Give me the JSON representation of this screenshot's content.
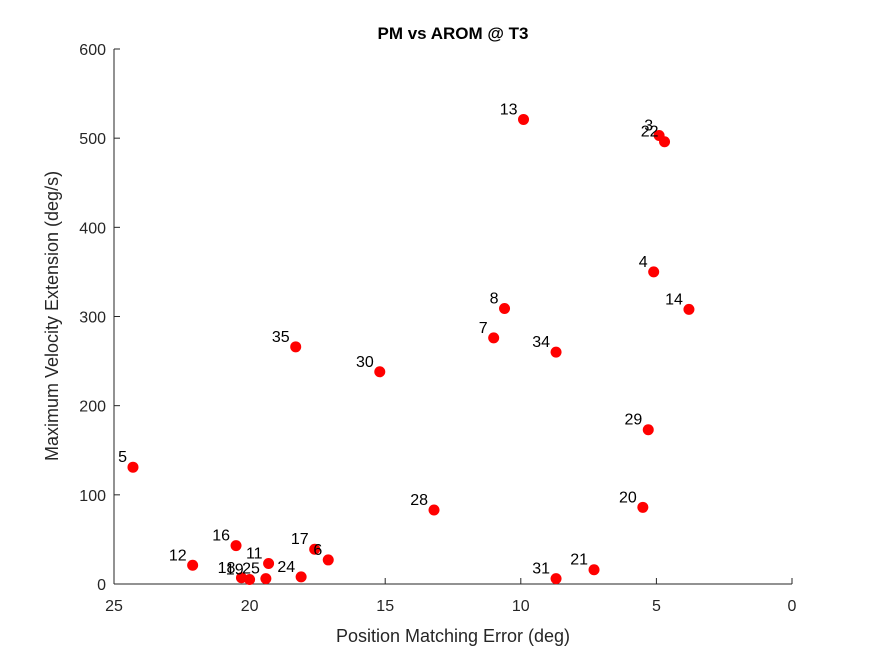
{
  "chart_data": {
    "type": "scatter",
    "title": "PM vs AROM @ T3",
    "xlabel": "Position Matching Error (deg)",
    "ylabel": "Maximum Velocity Extension (deg/s)",
    "xlim": [
      0,
      25
    ],
    "ylim": [
      0,
      600
    ],
    "x_reversed": true,
    "x_ticks": [
      "25",
      "20",
      "15",
      "10",
      "5",
      "0"
    ],
    "y_ticks": [
      "0",
      "100",
      "200",
      "300",
      "400",
      "500",
      "600"
    ],
    "grid": false,
    "marker_color": "#ff0000",
    "points": [
      {
        "label": "13",
        "x": 9.9,
        "y": 521
      },
      {
        "label": "3",
        "x": 4.9,
        "y": 503
      },
      {
        "label": "22",
        "x": 4.7,
        "y": 496
      },
      {
        "label": "4",
        "x": 5.1,
        "y": 350
      },
      {
        "label": "14",
        "x": 3.8,
        "y": 308
      },
      {
        "label": "8",
        "x": 10.6,
        "y": 309
      },
      {
        "label": "7",
        "x": 11.0,
        "y": 276
      },
      {
        "label": "34",
        "x": 8.7,
        "y": 260
      },
      {
        "label": "35",
        "x": 18.3,
        "y": 266
      },
      {
        "label": "30",
        "x": 15.2,
        "y": 238
      },
      {
        "label": "29",
        "x": 5.3,
        "y": 173
      },
      {
        "label": "5",
        "x": 24.3,
        "y": 131
      },
      {
        "label": "20",
        "x": 5.5,
        "y": 86
      },
      {
        "label": "28",
        "x": 13.2,
        "y": 83
      },
      {
        "label": "16",
        "x": 20.5,
        "y": 43
      },
      {
        "label": "17",
        "x": 17.6,
        "y": 39
      },
      {
        "label": "6",
        "x": 17.1,
        "y": 27
      },
      {
        "label": "11",
        "x": 19.3,
        "y": 23
      },
      {
        "label": "12",
        "x": 22.1,
        "y": 21
      },
      {
        "label": "21",
        "x": 7.3,
        "y": 16
      },
      {
        "label": "18",
        "x": 20.3,
        "y": 7
      },
      {
        "label": "19",
        "x": 20.0,
        "y": 5
      },
      {
        "label": "25",
        "x": 19.4,
        "y": 6
      },
      {
        "label": "24",
        "x": 18.1,
        "y": 8
      },
      {
        "label": "31",
        "x": 8.7,
        "y": 6
      }
    ]
  }
}
